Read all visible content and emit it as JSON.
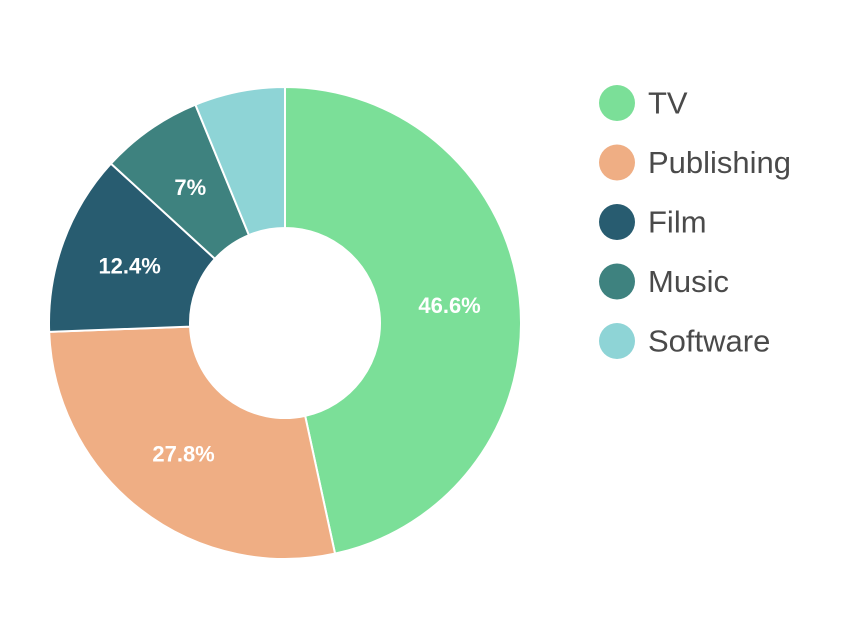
{
  "chart_data": {
    "type": "pie",
    "variant": "donut",
    "categories": [
      "TV",
      "Publishing",
      "Film",
      "Music",
      "Software"
    ],
    "values": [
      46.6,
      27.8,
      12.4,
      7.0,
      6.2
    ],
    "labels": [
      "46.6%",
      "27.8%",
      "12.4%",
      "7%",
      ""
    ],
    "colors": [
      "#7BDF98",
      "#EFAE84",
      "#285C70",
      "#3E827F",
      "#8ED4D6"
    ],
    "title": "",
    "legend": {
      "placement": "right",
      "entries": [
        "TV",
        "Publishing",
        "Film",
        "Music",
        "Software"
      ]
    }
  }
}
